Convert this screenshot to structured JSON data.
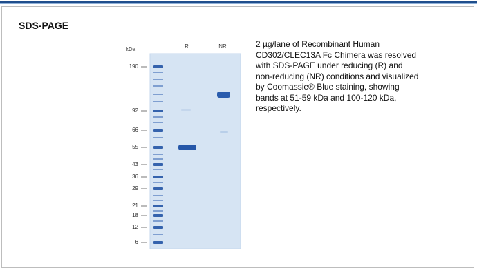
{
  "figure": {
    "title": "SDS-PAGE",
    "gel": {
      "unit_label": "kDa",
      "lanes": [
        "R",
        "NR"
      ],
      "markers": [
        "190",
        "92",
        "66",
        "55",
        "43",
        "36",
        "29",
        "21",
        "18",
        "12",
        "6"
      ]
    },
    "description": [
      "2 µg/lane of Recombinant Human",
      "CD302/CLEC13A Fc Chimera was resolved",
      "with SDS-PAGE under reducing (R) and",
      "non-reducing (NR) conditions and visualized",
      "by Coomassie® Blue staining, showing",
      "bands at 51-59 kDa and 100-120 kDa,",
      "respectively."
    ]
  }
}
